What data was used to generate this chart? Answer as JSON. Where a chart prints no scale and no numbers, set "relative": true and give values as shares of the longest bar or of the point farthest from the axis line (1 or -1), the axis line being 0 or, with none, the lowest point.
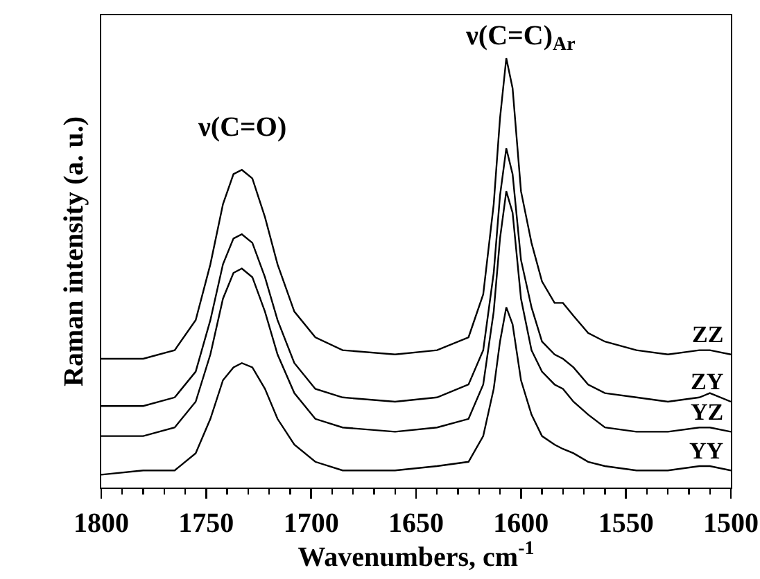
{
  "chart_data": {
    "type": "line",
    "relative": true,
    "xlabel": "Wavenumbers, cm$^{-1}$",
    "ylabel": "Raman intensity (a. u.)",
    "x": [
      1800,
      1780,
      1765,
      1755,
      1748,
      1742,
      1737,
      1733,
      1728,
      1722,
      1716,
      1708,
      1698,
      1685,
      1660,
      1640,
      1625,
      1618,
      1613,
      1610,
      1607,
      1604,
      1600,
      1595,
      1590,
      1584,
      1580,
      1575,
      1568,
      1560,
      1545,
      1530,
      1515,
      1510,
      1500
    ],
    "xlim": [
      1800,
      1500
    ],
    "xticks": [
      1800,
      1750,
      1700,
      1650,
      1600,
      1550,
      1500
    ],
    "marker": "none",
    "line_style": "solid",
    "legend": false,
    "annotations": [
      "ν(C=O)",
      "ν(C=C)$_{Ar}$"
    ],
    "series": [
      {
        "name": "ZZ",
        "color": "#000000",
        "values": [
          0.3,
          0.3,
          0.32,
          0.39,
          0.52,
          0.66,
          0.73,
          0.74,
          0.72,
          0.63,
          0.52,
          0.41,
          0.35,
          0.32,
          0.31,
          0.32,
          0.35,
          0.45,
          0.66,
          0.86,
          1,
          0.93,
          0.69,
          0.57,
          0.48,
          0.43,
          0.43,
          0.4,
          0.36,
          0.34,
          0.32,
          0.31,
          0.32,
          0.32,
          0.31
        ]
      },
      {
        "name": "ZY",
        "color": "#000000",
        "values": [
          0.19,
          0.19,
          0.21,
          0.27,
          0.39,
          0.52,
          0.58,
          0.59,
          0.57,
          0.49,
          0.39,
          0.29,
          0.23,
          0.21,
          0.2,
          0.21,
          0.24,
          0.32,
          0.5,
          0.68,
          0.79,
          0.73,
          0.53,
          0.42,
          0.34,
          0.31,
          0.3,
          0.28,
          0.24,
          0.22,
          0.21,
          0.2,
          0.21,
          0.22,
          0.2
        ]
      },
      {
        "name": "YZ",
        "color": "#000000",
        "values": [
          0.12,
          0.12,
          0.14,
          0.2,
          0.31,
          0.44,
          0.5,
          0.51,
          0.49,
          0.41,
          0.31,
          0.22,
          0.16,
          0.14,
          0.13,
          0.14,
          0.16,
          0.24,
          0.41,
          0.58,
          0.69,
          0.64,
          0.44,
          0.32,
          0.27,
          0.24,
          0.23,
          0.2,
          0.17,
          0.14,
          0.13,
          0.13,
          0.14,
          0.14,
          0.13
        ]
      },
      {
        "name": "YY",
        "color": "#000000",
        "values": [
          0.03,
          0.04,
          0.04,
          0.08,
          0.16,
          0.25,
          0.28,
          0.29,
          0.28,
          0.23,
          0.16,
          0.1,
          0.06,
          0.04,
          0.04,
          0.05,
          0.06,
          0.12,
          0.23,
          0.34,
          0.42,
          0.38,
          0.25,
          0.17,
          0.12,
          0.1,
          0.09,
          0.08,
          0.06,
          0.05,
          0.04,
          0.04,
          0.05,
          0.05,
          0.04
        ]
      }
    ]
  }
}
